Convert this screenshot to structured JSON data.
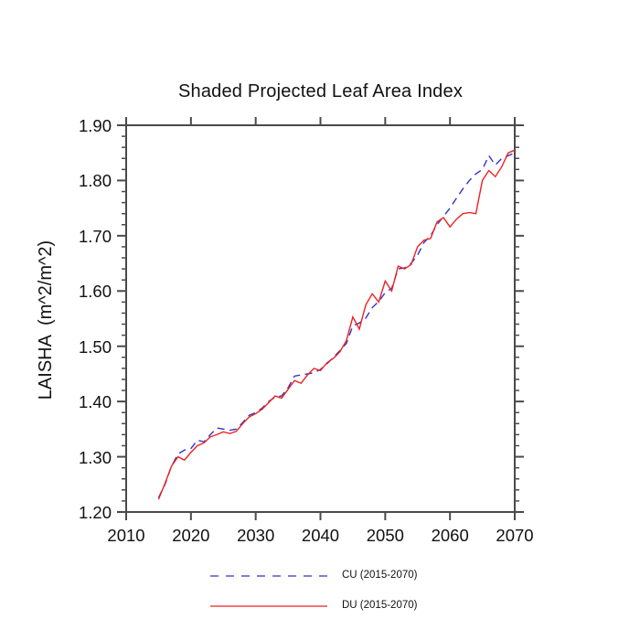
{
  "chart_data": {
    "type": "line",
    "title": "Shaded Projected Leaf Area Index",
    "ylabel": "LAISHA  (m^2/m^2)",
    "xlabel": "",
    "xlim": [
      2010,
      2070
    ],
    "ylim": [
      1.2,
      1.9
    ],
    "grid": false,
    "legend_position": "bottom-center",
    "frame_color": "#4a4a4a",
    "x_major_ticks": [
      2010,
      2020,
      2030,
      2040,
      2050,
      2060,
      2070
    ],
    "x_tick_labels": [
      "2010",
      "2020",
      "2030",
      "2040",
      "2050",
      "2060",
      "2070"
    ],
    "y_major_ticks": [
      1.2,
      1.3,
      1.4,
      1.5,
      1.6,
      1.7,
      1.8,
      1.9
    ],
    "y_tick_labels": [
      "1.20",
      "1.30",
      "1.40",
      "1.50",
      "1.60",
      "1.70",
      "1.80",
      "1.90"
    ],
    "y_minor_step": 0.02,
    "x": [
      2015,
      2016,
      2017,
      2018,
      2019,
      2020,
      2021,
      2022,
      2023,
      2024,
      2025,
      2026,
      2027,
      2028,
      2029,
      2030,
      2031,
      2032,
      2033,
      2034,
      2035,
      2036,
      2037,
      2038,
      2039,
      2040,
      2041,
      2042,
      2043,
      2044,
      2045,
      2046,
      2047,
      2048,
      2049,
      2050,
      2051,
      2052,
      2053,
      2054,
      2055,
      2056,
      2057,
      2058,
      2059,
      2060,
      2061,
      2062,
      2063,
      2064,
      2065,
      2066,
      2067,
      2068,
      2069,
      2070
    ],
    "series": [
      {
        "name": "CU",
        "legend_label": "CU (2015-2070)",
        "color": "#3333cc",
        "style": "dashed",
        "values": [
          1.226,
          1.25,
          1.283,
          1.305,
          1.312,
          1.315,
          1.33,
          1.327,
          1.34,
          1.352,
          1.35,
          1.348,
          1.35,
          1.362,
          1.375,
          1.38,
          1.388,
          1.4,
          1.408,
          1.41,
          1.425,
          1.446,
          1.448,
          1.45,
          1.452,
          1.458,
          1.468,
          1.48,
          1.492,
          1.505,
          1.537,
          1.542,
          1.551,
          1.57,
          1.581,
          1.597,
          1.605,
          1.64,
          1.642,
          1.65,
          1.665,
          1.688,
          1.7,
          1.72,
          1.735,
          1.75,
          1.768,
          1.785,
          1.8,
          1.812,
          1.82,
          1.845,
          1.828,
          1.84,
          1.845,
          1.85
        ]
      },
      {
        "name": "DU",
        "legend_label": "DU (2015-2070)",
        "color": "#ee2222",
        "style": "solid",
        "values": [
          1.223,
          1.252,
          1.283,
          1.3,
          1.294,
          1.308,
          1.32,
          1.325,
          1.336,
          1.34,
          1.345,
          1.342,
          1.346,
          1.36,
          1.372,
          1.378,
          1.386,
          1.398,
          1.41,
          1.406,
          1.422,
          1.438,
          1.433,
          1.448,
          1.46,
          1.456,
          1.47,
          1.478,
          1.49,
          1.51,
          1.553,
          1.531,
          1.575,
          1.595,
          1.58,
          1.618,
          1.6,
          1.645,
          1.64,
          1.648,
          1.68,
          1.692,
          1.695,
          1.725,
          1.733,
          1.716,
          1.73,
          1.74,
          1.742,
          1.74,
          1.8,
          1.818,
          1.807,
          1.825,
          1.85,
          1.855
        ]
      }
    ]
  }
}
